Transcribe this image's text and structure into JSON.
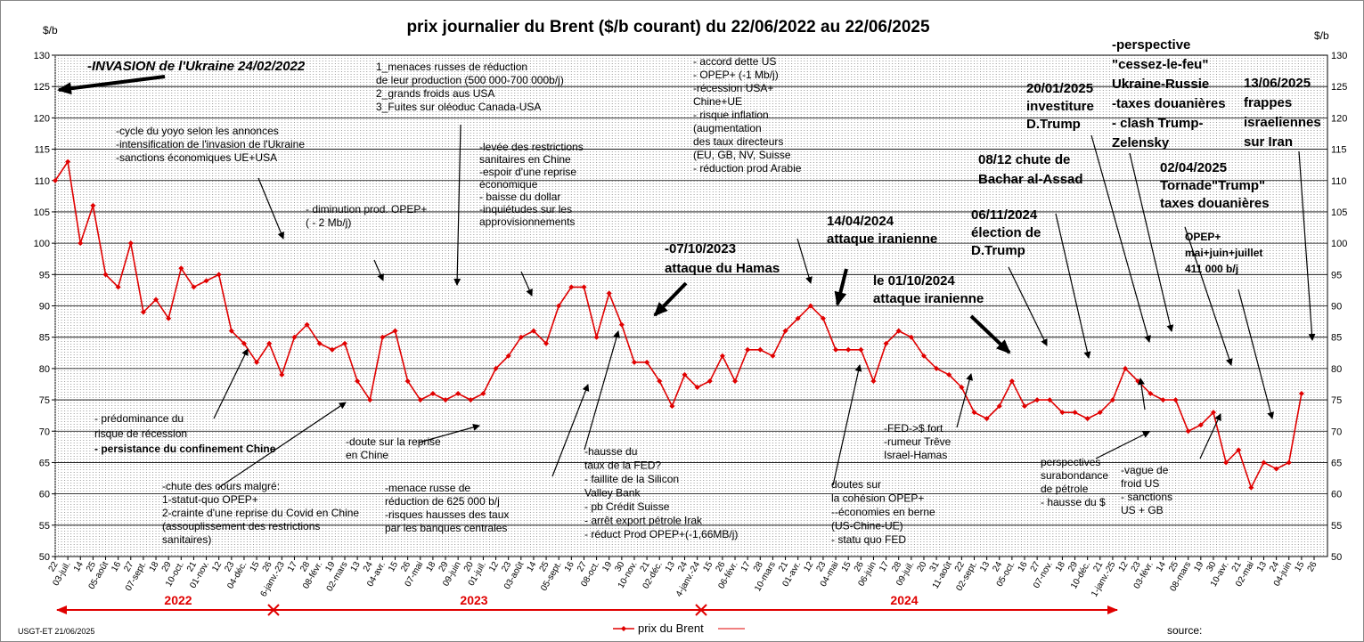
{
  "chart_data": {
    "type": "line",
    "title": "prix  journalier du  Brent ($/b courant) du 22/06/2022  au  22/06/2025",
    "y_unit": "$/b",
    "author": "USGT-ET  21/06/2025",
    "source": "source:",
    "year_labels": [
      "2022",
      "2023",
      "2024"
    ],
    "categories": [
      "22",
      "03-juil.",
      "14",
      "25",
      "05-août",
      "16",
      "27",
      "07-sept.",
      "18",
      "29",
      "10-oct.",
      "21",
      "01-nov.",
      "12",
      "23",
      "04-déc.",
      "15",
      "26",
      "6-janv.-23",
      "17",
      "28",
      "08-févr.",
      "19",
      "02-mars",
      "13",
      "24",
      "04-avr.",
      "15",
      "26",
      "07-mai",
      "18",
      "29",
      "09-juin",
      "20",
      "01-juil.",
      "12",
      "23",
      "03-août",
      "14",
      "25",
      "05-sept.",
      "16",
      "27",
      "08-oct.",
      "19",
      "30",
      "10-nov.",
      "21",
      "02-déc.",
      "13",
      "24",
      "4-janv.-24",
      "15",
      "26",
      "06-févr.",
      "17",
      "28",
      "10-mars",
      "21",
      "01-avr.",
      "12",
      "23",
      "04-mai",
      "15",
      "26",
      "06-juin",
      "17",
      "28",
      "09-juil.",
      "20",
      "31",
      "11-août",
      "22",
      "02-sept.",
      "13",
      "24",
      "05-oct.",
      "16",
      "27",
      "07-nov.",
      "18",
      "29",
      "10-déc.",
      "21",
      "1-janv.-25",
      "12",
      "23",
      "03-févr.",
      "14",
      "25",
      "08-mars",
      "19",
      "30",
      "10-avr.",
      "21",
      "02-mai",
      "13",
      "24",
      "04-juin",
      "15",
      "26"
    ],
    "series": [
      {
        "name": "prix du Brent",
        "color": "#e00000",
        "values": [
          110,
          113,
          100,
          106,
          95,
          93,
          100,
          89,
          91,
          88,
          96,
          93,
          94,
          95,
          86,
          84,
          81,
          84,
          79,
          85,
          87,
          84,
          83,
          84,
          78,
          75,
          85,
          86,
          78,
          75,
          76,
          75,
          76,
          75,
          76,
          80,
          82,
          85,
          86,
          84,
          90,
          93,
          93,
          85,
          92,
          87,
          81,
          81,
          78,
          74,
          79,
          77,
          78,
          82,
          78,
          83,
          83,
          82,
          86,
          88,
          90,
          88,
          83,
          83,
          83,
          78,
          84,
          86,
          85,
          82,
          80,
          79,
          77,
          73,
          72,
          74,
          78,
          74,
          75,
          75,
          73,
          73,
          72,
          73,
          75,
          80,
          78,
          76,
          75,
          75,
          70,
          71,
          73,
          65,
          67,
          61,
          65,
          64,
          65,
          76,
          null
        ]
      }
    ],
    "ylim": [
      50,
      130
    ],
    "yticks": [
      50,
      55,
      60,
      65,
      70,
      75,
      80,
      85,
      90,
      95,
      100,
      105,
      110,
      115,
      120,
      125,
      130
    ],
    "grid": true,
    "annotations": [
      [
        "-INVASION de l'Ukraine 24/02/2022"
      ],
      [
        "-cycle du yoyo selon les annonces",
        "-intensification de l'invasion de l'Ukraine",
        "-sanctions économiques UE+USA"
      ],
      [
        "1_menaces russes de réduction",
        "de leur production (500 000-700  000b/j)",
        "2_grands froids aus USA",
        "3_Fuites sur oléoduc Canada-USA"
      ],
      [
        "- diminution prod. OPEP+",
        "( - 2 Mb/j)"
      ],
      [
        "-levée des restrictions",
        "sanitaires en Chine",
        "-espoir d'une reprise",
        "économique",
        "- baisse du dollar",
        "-inquiétudes sur  les",
        "approvisionnements"
      ],
      [
        "- accord dette US",
        "- OPEP+ (-1 Mb/j)",
        "-récession  USA+",
        "Chine+UE",
        "- risque inflation",
        "(augmentation",
        "des taux directeurs",
        "(EU, GB, NV, Suisse",
        "- réduction prod Arabie"
      ],
      [
        "-07/10/2023",
        "attaque  du Hamas"
      ],
      [
        "14/04/2024",
        "attaque iranienne"
      ],
      [
        "le 01/10/2024",
        "attaque iranienne"
      ],
      [
        "06/11/2024",
        "élection de",
        "D.Trump"
      ],
      [
        "08/12 chute de",
        "Bachar al-Assad"
      ],
      [
        "20/01/2025",
        "investiture",
        "D.Trump"
      ],
      [
        "-perspective",
        "\"cessez-le-feu\"",
        "Ukraine-Russie",
        "-taxes douanières",
        "- clash Trump-",
        "Zelensky"
      ],
      [
        "13/06/2025",
        "frappes",
        "israeliennes",
        "sur Iran"
      ],
      [
        "02/04/2025",
        "Tornade\"Trump\"",
        "taxes douanières"
      ],
      [
        "OPEP+",
        "mai+juin+juillet",
        "411 000 b/j"
      ],
      [
        "- prédominance du",
        "risque de récession",
        "- persistance du confinement Chine"
      ],
      [
        "-chute des cours malgré:",
        "1-statut-quo OPEP+",
        "2-crainte d'une reprise du Covid en Chine",
        "(assouplissement des restrictions",
        "sanitaires)"
      ],
      [
        "-doute sur la reprise",
        "en Chine"
      ],
      [
        "-menace russe de",
        "réduction de 625 000  b/j",
        "-risques hausses des taux",
        "par les banques centrales"
      ],
      [
        "-hausse du",
        "taux de la FED?",
        "- faillite de la Silicon",
        "Valley Bank",
        "- pb Crédit Suisse",
        "- arrêt export pétrole Irak",
        "- réduct Prod OPEP+(-1,66MB/j)"
      ],
      [
        "doutes sur",
        "la cohésion  OPEP+",
        "--économies en berne",
        "(US-Chine-UE)",
        "- statu quo FED"
      ],
      [
        "-FED->$ fort",
        "-rumeur Trêve",
        "Israel-Hamas"
      ],
      [
        "perspectives",
        "surabondance",
        "de pétrole",
        "- hausse du $"
      ],
      [
        "-vague de",
        "froid US",
        "- sanctions",
        "US + GB"
      ]
    ]
  }
}
